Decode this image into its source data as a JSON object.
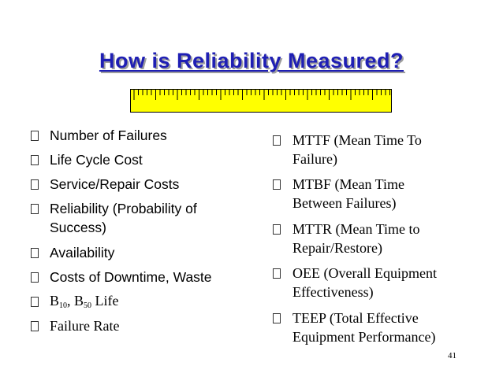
{
  "slide": {
    "title": "How is Reliability Measured?",
    "page_number": "41",
    "left_items": [
      {
        "lines": [
          "Number of Failures"
        ]
      },
      {
        "lines": [
          "Life Cycle Cost"
        ]
      },
      {
        "lines": [
          "Service/Repair Costs"
        ]
      },
      {
        "lines": [
          "Reliability (Probability of",
          "Success)"
        ]
      },
      {
        "lines": [
          "Availability"
        ]
      },
      {
        "lines": [
          "Costs of Downtime, Waste"
        ]
      },
      {
        "b10": "B",
        "b10_sub": "10",
        "sep": ", ",
        "b50": "B",
        "b50_sub": "50",
        "suffix": " Life"
      },
      {
        "lines": [
          "Failure Rate"
        ]
      }
    ],
    "right_items": [
      {
        "lines": [
          "MTTF (Mean Time To",
          "Failure)"
        ]
      },
      {
        "lines": [
          "MTBF (Mean Time",
          "Between Failures)"
        ]
      },
      {
        "lines": [
          "MTTR (Mean Time to",
          "Repair/Restore)"
        ]
      },
      {
        "lines": [
          "OEE (Overall Equipment",
          "Effectiveness)"
        ]
      },
      {
        "lines": [
          "TEEP (Total Effective",
          "Equipment Performance)"
        ]
      }
    ]
  },
  "colors": {
    "title": "#1f1fb4",
    "title_shadow": "#9d9d9d",
    "ruler_fill": "#ffff00"
  },
  "icons": {
    "bullet": "hollow-square-bullet-icon",
    "ruler": "ruler-icon"
  }
}
